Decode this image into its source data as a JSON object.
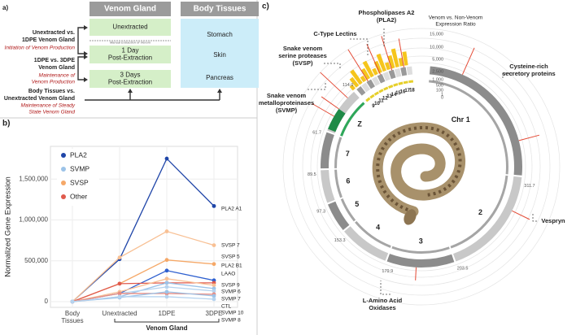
{
  "panel_a": {
    "letter": "a)",
    "col_headers": [
      "Venom Gland",
      "Body Tissues"
    ],
    "venom_boxes": [
      [
        "Unextracted"
      ],
      [
        "1 Day",
        "Post-Extraction"
      ],
      [
        "3 Days",
        "Post-Extraction"
      ]
    ],
    "tissue_boxes": [
      "Stomach",
      "Skin",
      "Pancreas"
    ],
    "manual_note": "Manual Extraction of Venom",
    "comparisons": [
      {
        "title": [
          "Unextracted vs.",
          "1DPE Venom Gland"
        ],
        "subtitle": [
          "Initiation of Venom Production"
        ]
      },
      {
        "title": [
          "1DPE vs. 3DPE",
          "Venom Gland"
        ],
        "subtitle": [
          "Maintenance of",
          "Venom Production"
        ]
      },
      {
        "title": [
          "Body Tissues vs.",
          "Unextracted Venom Gland"
        ],
        "subtitle": [
          "Maintenance of Steady",
          "State Venom Gland"
        ]
      }
    ]
  },
  "chart_data": {
    "type": "line",
    "letter": "b)",
    "y_label": "Normalized Gene Expression",
    "x_group_label": "Venom Gland",
    "categories": [
      "Body Tissues",
      "Unextracted",
      "1DPE",
      "3DPE"
    ],
    "ylim": [
      -70000,
      1900000
    ],
    "yticks": [
      0,
      {
        "value": 500000,
        "label": "500,000"
      },
      {
        "value": 1000000,
        "label": "1,000,000"
      },
      {
        "value": 1500000,
        "label": "1,500,000"
      }
    ],
    "legend": [
      {
        "name": "PLA2",
        "color": "#1f45a8"
      },
      {
        "name": "SVMP",
        "color": "#9cc3e8"
      },
      {
        "name": "SVSP",
        "color": "#f5a868"
      },
      {
        "name": "Other",
        "color": "#e05a4c"
      }
    ],
    "series": [
      {
        "name": "PLA2 A1",
        "color": "#1f45a8",
        "values": [
          0,
          520000,
          1750000,
          1170000
        ]
      },
      {
        "name": "SVSP 7",
        "color": "#f8c094",
        "values": [
          0,
          540000,
          860000,
          690000
        ]
      },
      {
        "name": "SVSP 5",
        "color": "#f5a868",
        "values": [
          0,
          220000,
          510000,
          460000
        ]
      },
      {
        "name": "PLA2 B1",
        "color": "#2d5fcf",
        "values": [
          0,
          100000,
          380000,
          260000
        ]
      },
      {
        "name": "LAAO",
        "color": "#e05a4c",
        "values": [
          0,
          220000,
          230000,
          230000
        ]
      },
      {
        "name": "SVSP 9",
        "color": "#f8c094",
        "values": [
          0,
          120000,
          280000,
          200000
        ]
      },
      {
        "name": "SVMP 6",
        "color": "#9cc3e8",
        "values": [
          0,
          60000,
          230000,
          160000
        ]
      },
      {
        "name": "SVMP 7",
        "color": "#b5d3ef",
        "values": [
          0,
          100000,
          180000,
          130000
        ]
      },
      {
        "name": "CTL",
        "color": "#e88a80",
        "values": [
          0,
          100000,
          100000,
          90000
        ]
      },
      {
        "name": "SVMP 10",
        "color": "#9cc3e8",
        "values": [
          0,
          50000,
          120000,
          70000
        ]
      },
      {
        "name": "SVMP 8",
        "color": "#b5d3ef",
        "values": [
          0,
          60000,
          60000,
          30000
        ]
      }
    ]
  },
  "panel_c": {
    "letter": "c)",
    "ratio_title": [
      "Venom vs. Non-Venom",
      "Expression Ratio"
    ],
    "ratio_ticks": [
      "15,000",
      "10,000",
      "5,000",
      "2,500",
      "1,000",
      "500",
      "100",
      "1",
      "0"
    ],
    "chromosomes": [
      "Chr 1",
      "2",
      "3",
      "4",
      "5",
      "6",
      "7",
      "Z"
    ],
    "micro": [
      "9",
      "10",
      "11",
      "12",
      "13",
      "14",
      "15",
      "16",
      "17",
      "18"
    ],
    "positions": [
      "311.7",
      "203.5",
      "179.9",
      "153.3",
      "97.3",
      "89.5",
      "61.7",
      "114.0"
    ],
    "callouts": [
      {
        "lines": [
          "Phospholipases A2",
          "(PLA2)"
        ]
      },
      {
        "lines": [
          "C-Type Lectins"
        ]
      },
      {
        "lines": [
          "Snake venom",
          "serine proteases",
          "(SVSP)"
        ]
      },
      {
        "lines": [
          "Snake venom",
          "metalloproteinases",
          "(SVMP)"
        ]
      },
      {
        "lines": [
          "Cysteine-rich",
          "secretory proteins"
        ]
      },
      {
        "lines": [
          "Vespryn"
        ]
      },
      {
        "lines": [
          "L-Amino Acid",
          "Oxidases"
        ]
      }
    ]
  }
}
